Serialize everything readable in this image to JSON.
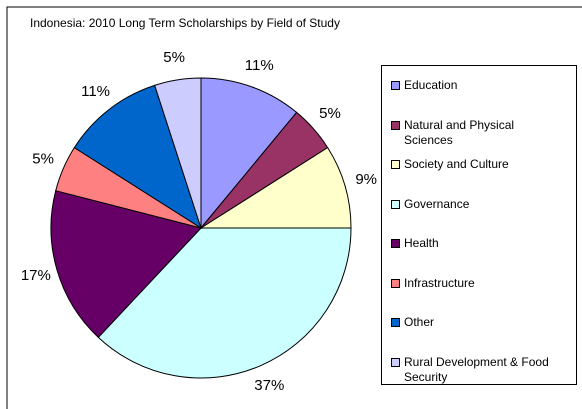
{
  "chart_data": {
    "type": "pie",
    "title": "Indonesia: 2010 Long Term Scholarships by Field of Study",
    "categories": [
      "Education",
      "Natural and Physical Sciences",
      "Society and Culture",
      "Governance",
      "Health",
      "Infrastructure",
      "Other",
      "Rural Development & Food Security"
    ],
    "values": [
      11,
      5,
      9,
      37,
      17,
      5,
      11,
      5
    ],
    "value_labels": [
      "11%",
      "5%",
      "9%",
      "37%",
      "17%",
      "5%",
      "11%",
      "5%"
    ],
    "colors": [
      "#9999ff",
      "#993366",
      "#ffffcc",
      "#ccffff",
      "#660066",
      "#ff8080",
      "#0066cc",
      "#ccccff"
    ],
    "legend": "right"
  }
}
